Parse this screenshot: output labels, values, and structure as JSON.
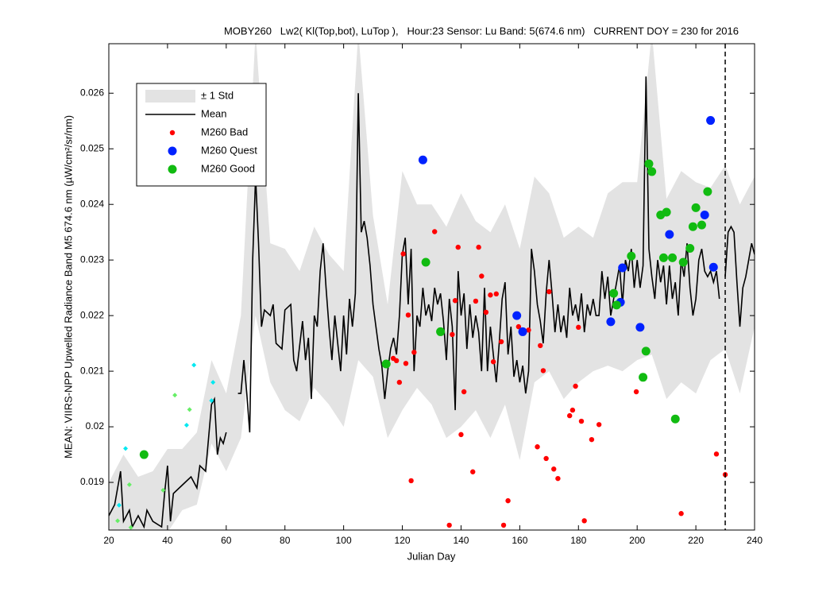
{
  "chart_data": {
    "type": "line",
    "title": "MOBY260   Lw2( Kl(Top,bot), LuTop ),   Hour:23 Sensor: Lu Band: 5(674.6 nm)   CURRENT DOY = 230 for 2016",
    "x_label": "Julian Day",
    "y_label": "MEAN: VIIRS-NPP Upwelled Radiance Band M5 674.6 nm (µW/cm²/sr/nm)",
    "xlim": [
      20,
      240
    ],
    "ylim": [
      0.018143,
      0.02689
    ],
    "xticks": [
      20,
      40,
      60,
      80,
      100,
      120,
      140,
      160,
      180,
      200,
      220,
      240
    ],
    "yticks": [
      0.019,
      0.02,
      0.021,
      0.022,
      0.023,
      0.024,
      0.025,
      0.026
    ],
    "current_doy": 230,
    "series": [
      {
        "name": "± 1 Std",
        "style": "band",
        "color": "#e3e3e3",
        "x": [
          20,
          25,
          30,
          35,
          40,
          45,
          50,
          55,
          60,
          65,
          70,
          75,
          80,
          85,
          90,
          95,
          100,
          105,
          110,
          115,
          120,
          125,
          130,
          135,
          140,
          145,
          150,
          155,
          160,
          165,
          170,
          175,
          180,
          185,
          190,
          195,
          200,
          205,
          210,
          215,
          220,
          225,
          230,
          235,
          240
        ],
        "lower": [
          0.0181,
          0.0181,
          0.0181,
          0.0181,
          0.0181,
          0.0185,
          0.0186,
          0.0197,
          0.0192,
          0.0198,
          0.022,
          0.0208,
          0.0203,
          0.0201,
          0.0207,
          0.0204,
          0.02,
          0.0212,
          0.0209,
          0.0198,
          0.0203,
          0.0207,
          0.0204,
          0.0198,
          0.02,
          0.0203,
          0.0198,
          0.0204,
          0.0194,
          0.0208,
          0.021,
          0.0205,
          0.0208,
          0.021,
          0.0211,
          0.021,
          0.0212,
          0.0213,
          0.0205,
          0.0208,
          0.0206,
          0.0212,
          0.0214,
          0.0206,
          0.0218
        ],
        "upper": [
          0.019,
          0.0195,
          0.0191,
          0.0192,
          0.0196,
          0.0196,
          0.0199,
          0.0212,
          0.0206,
          0.022,
          0.0271,
          0.0233,
          0.0232,
          0.0228,
          0.0236,
          0.0231,
          0.0228,
          0.0271,
          0.0238,
          0.0222,
          0.0246,
          0.024,
          0.024,
          0.0236,
          0.0242,
          0.0237,
          0.0235,
          0.024,
          0.0232,
          0.0245,
          0.0242,
          0.0234,
          0.0236,
          0.0234,
          0.0242,
          0.0244,
          0.0244,
          0.0271,
          0.0241,
          0.0246,
          0.0244,
          0.0243,
          0.0247,
          0.024,
          0.0245
        ]
      },
      {
        "name": "Mean",
        "style": "line",
        "color": "#000000",
        "x": [
          20,
          22,
          24,
          25,
          27,
          28,
          30,
          32,
          33,
          35,
          38,
          39,
          40,
          41,
          42,
          44,
          46,
          48,
          50,
          51,
          53,
          55,
          56,
          57,
          58,
          59,
          60,
          62,
          64,
          65,
          66,
          67,
          68,
          69,
          70,
          71,
          72,
          73,
          75,
          76,
          77,
          79,
          80,
          82,
          83,
          84,
          86,
          87,
          88,
          89,
          90,
          91,
          92,
          93,
          94,
          95,
          96,
          97,
          98,
          99,
          100,
          101,
          102,
          103,
          104,
          105,
          106,
          107,
          108,
          109,
          110,
          111,
          112,
          113,
          114,
          115,
          116,
          117,
          118,
          119,
          120,
          121,
          122,
          123,
          124,
          125,
          126,
          127,
          128,
          129,
          130,
          131,
          132,
          133,
          134,
          135,
          136,
          137,
          138,
          139,
          140,
          141,
          142,
          143,
          144,
          145,
          146,
          147,
          148,
          149,
          150,
          152,
          153,
          154,
          155,
          156,
          157,
          158,
          159,
          160,
          161,
          162,
          163,
          164,
          165,
          166,
          167,
          168,
          169,
          170,
          171,
          172,
          173,
          174,
          175,
          176,
          177,
          178,
          179,
          180,
          181,
          182,
          183,
          184,
          185,
          186,
          187,
          188,
          189,
          190,
          191,
          192,
          193,
          194,
          195,
          196,
          197,
          198,
          199,
          200,
          201,
          202,
          203,
          204,
          205,
          206,
          207,
          208,
          209,
          210,
          211,
          212,
          213,
          214,
          215,
          216,
          217,
          218,
          219,
          220,
          221,
          222,
          223,
          224,
          225,
          226,
          227,
          228,
          229,
          230,
          231,
          232,
          233,
          234,
          235,
          236,
          237,
          238,
          239,
          240
        ],
        "values": [
          0.0184,
          0.0186,
          0.0192,
          0.0183,
          0.0185,
          0.0182,
          0.0184,
          0.0182,
          0.0185,
          0.0183,
          0.0182,
          0.0188,
          0.0193,
          0.0183,
          0.0188,
          0.0189,
          0.019,
          0.0191,
          0.0189,
          0.0193,
          0.0192,
          0.0204,
          0.0205,
          0.0195,
          0.0198,
          0.0197,
          0.0199,
          null,
          0.0206,
          0.0206,
          0.0212,
          0.0206,
          0.0199,
          0.023,
          0.0245,
          0.0233,
          0.0218,
          0.0221,
          0.022,
          0.0222,
          0.0215,
          0.0214,
          0.0221,
          0.0222,
          0.0212,
          0.021,
          0.0219,
          0.0212,
          0.0216,
          0.0205,
          0.022,
          0.0218,
          0.0228,
          0.0233,
          0.0225,
          0.0218,
          0.0212,
          0.022,
          0.0215,
          0.021,
          0.022,
          0.0213,
          0.0223,
          0.0218,
          0.0224,
          0.026,
          0.0235,
          0.0237,
          0.0234,
          0.0229,
          0.0222,
          0.0218,
          0.0214,
          0.0211,
          0.0205,
          0.021,
          0.0214,
          0.0216,
          0.0213,
          0.022,
          0.0231,
          0.0234,
          0.0222,
          0.0232,
          0.021,
          0.022,
          0.0218,
          0.0225,
          0.022,
          0.0222,
          0.0219,
          0.0225,
          0.0222,
          0.0224,
          0.0219,
          0.0212,
          0.0223,
          0.0218,
          0.0203,
          0.0228,
          0.022,
          0.0224,
          0.0214,
          0.0222,
          0.0216,
          0.022,
          0.0217,
          0.021,
          0.0225,
          0.021,
          0.0218,
          0.0208,
          0.0215,
          0.0223,
          0.0226,
          0.0213,
          0.0218,
          0.0209,
          0.0212,
          0.0208,
          0.0211,
          0.0206,
          0.021,
          0.0232,
          0.0228,
          0.0222,
          0.0219,
          0.0215,
          0.0224,
          0.023,
          0.0224,
          0.0217,
          0.0222,
          0.0217,
          0.022,
          0.0216,
          0.0225,
          0.022,
          0.0222,
          0.0219,
          0.0224,
          0.0217,
          0.0222,
          0.022,
          0.0223,
          0.022,
          0.022,
          0.0228,
          0.0223,
          0.0227,
          0.022,
          0.0223,
          0.0226,
          0.0229,
          0.0222,
          0.023,
          0.0228,
          0.0232,
          0.0225,
          0.023,
          0.0225,
          0.0229,
          0.0263,
          0.0232,
          0.0227,
          0.0223,
          0.023,
          0.0226,
          0.0229,
          0.0222,
          0.0229,
          0.0223,
          0.0226,
          0.022,
          0.023,
          0.0227,
          0.0233,
          0.0225,
          0.022,
          0.0223,
          0.023,
          0.0232,
          0.0228,
          0.0227,
          0.0228,
          0.0226,
          0.0228,
          0.0223,
          null,
          0.0227,
          0.0235,
          0.0236,
          0.0235,
          0.0226,
          0.0218,
          0.0225,
          0.0227,
          0.023,
          0.0233,
          0.0231
        ]
      },
      {
        "style": "diamond",
        "color": "#00e8f0",
        "x": [
          23.5,
          25.7,
          46.5,
          49,
          55,
          55.5
        ],
        "values": [
          0.01859,
          0.01961,
          0.02003,
          0.02111,
          0.02047,
          0.0208
        ]
      },
      {
        "style": "diamond",
        "color": "#66ee66",
        "x": [
          23,
          27,
          27.5,
          38.5,
          42.5,
          47.5
        ],
        "values": [
          0.01831,
          0.01896,
          0.01819,
          0.01886,
          0.02057,
          0.02031
        ]
      },
      {
        "name": "M260 Bad",
        "style": "scatter",
        "color": "#ff0000",
        "size": 3.2,
        "x": [
          116.9,
          118,
          119,
          120.3,
          121.2,
          122,
          123,
          124,
          131,
          136,
          137,
          138,
          139,
          140,
          141,
          144,
          145,
          146,
          147,
          148.5,
          150,
          151,
          152,
          153.7,
          154.5,
          156,
          159.6,
          163,
          166,
          167,
          168,
          169,
          170,
          171.6,
          173,
          177,
          178,
          179,
          180,
          181,
          182,
          184.5,
          187,
          199.7,
          215,
          227,
          230
        ],
        "values": [
          0.02123,
          0.02119,
          0.0208,
          0.02311,
          0.02114,
          0.02201,
          0.01903,
          0.02134,
          0.02351,
          0.01823,
          0.02166,
          0.02227,
          0.02323,
          0.01986,
          0.02063,
          0.01919,
          0.02226,
          0.02323,
          0.02271,
          0.02206,
          0.02237,
          0.02117,
          0.02239,
          0.02153,
          0.01823,
          0.01867,
          0.0218,
          0.02174,
          0.01964,
          0.02146,
          0.02101,
          0.01943,
          0.02243,
          0.01924,
          0.01907,
          0.0202,
          0.0203,
          0.02073,
          0.02179,
          0.0201,
          0.01831,
          0.01977,
          0.02004,
          0.02063,
          0.01844,
          0.01951,
          0.01914
        ]
      },
      {
        "name": "M260 Quest",
        "style": "scatter",
        "color": "#0022ff",
        "size": 5.5,
        "x": [
          127,
          159,
          161,
          191,
          194.3,
          195,
          201,
          211,
          223,
          225,
          226
        ],
        "values": [
          0.0248,
          0.022,
          0.02171,
          0.02189,
          0.02224,
          0.02286,
          0.02179,
          0.02346,
          0.02381,
          0.02551,
          0.02287
        ]
      },
      {
        "name": "M260 Good",
        "style": "scatter",
        "color": "#11bb11",
        "size": 5.5,
        "x": [
          32,
          114.5,
          128,
          133,
          192,
          193,
          198,
          202,
          203,
          204,
          205,
          208,
          209,
          210,
          212,
          213,
          215.7,
          218,
          219,
          220,
          222,
          224
        ],
        "values": [
          0.0195,
          0.02113,
          0.02296,
          0.02171,
          0.0224,
          0.02219,
          0.02307,
          0.02089,
          0.02136,
          0.02473,
          0.02459,
          0.02381,
          0.02304,
          0.02386,
          0.02304,
          0.02014,
          0.02296,
          0.02321,
          0.0236,
          0.02394,
          0.02363,
          0.02423
        ]
      }
    ]
  }
}
